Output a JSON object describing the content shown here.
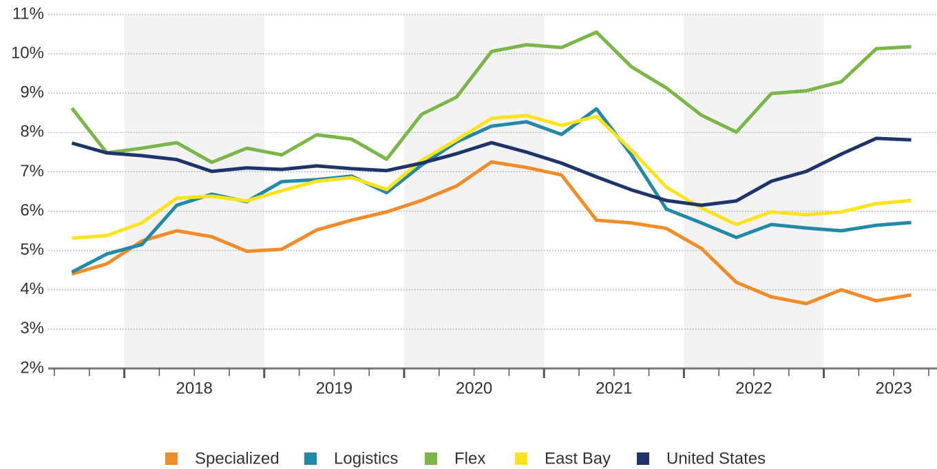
{
  "chart_data": {
    "type": "line",
    "x": [
      2017.625,
      2017.875,
      2018.125,
      2018.375,
      2018.625,
      2018.875,
      2019.125,
      2019.375,
      2019.625,
      2019.875,
      2020.125,
      2020.375,
      2020.625,
      2020.875,
      2021.125,
      2021.375,
      2021.625,
      2021.875,
      2022.125,
      2022.375,
      2022.625,
      2022.875,
      2023.125,
      2023.375,
      2023.625
    ],
    "xlim": [
      2017.5,
      2023.75
    ],
    "xticks": [
      {
        "value": 2018.5,
        "label": "2018"
      },
      {
        "value": 2019.5,
        "label": "2019"
      },
      {
        "value": 2020.5,
        "label": "2020"
      },
      {
        "value": 2021.5,
        "label": "2021"
      },
      {
        "value": 2022.5,
        "label": "2022"
      },
      {
        "value": 2023.5,
        "label": "2023"
      }
    ],
    "ylim": [
      2,
      11
    ],
    "yticks": [
      {
        "value": 2,
        "label": "2%"
      },
      {
        "value": 3,
        "label": "3%"
      },
      {
        "value": 4,
        "label": "4%"
      },
      {
        "value": 5,
        "label": "5%"
      },
      {
        "value": 6,
        "label": "6%"
      },
      {
        "value": 7,
        "label": "7%"
      },
      {
        "value": 8,
        "label": "8%"
      },
      {
        "value": 9,
        "label": "9%"
      },
      {
        "value": 10,
        "label": "10%"
      },
      {
        "value": 11,
        "label": "11%"
      }
    ],
    "grid": true,
    "series": [
      {
        "name": "Specialized",
        "color": "#f28c28",
        "values": [
          4.4,
          4.66,
          5.24,
          5.5,
          5.35,
          4.98,
          5.03,
          5.52,
          5.77,
          5.98,
          6.27,
          6.64,
          7.25,
          7.11,
          6.92,
          5.77,
          5.7,
          5.56,
          5.05,
          4.19,
          3.82,
          3.65,
          4.0,
          3.72,
          3.87
        ]
      },
      {
        "name": "Logistics",
        "color": "#2389a6",
        "values": [
          4.45,
          4.91,
          5.15,
          6.15,
          6.43,
          6.24,
          6.75,
          6.8,
          6.89,
          6.47,
          7.17,
          7.76,
          8.16,
          8.27,
          7.95,
          8.6,
          7.43,
          6.05,
          5.7,
          5.33,
          5.66,
          5.57,
          5.5,
          5.64,
          5.71
        ]
      },
      {
        "name": "Flex",
        "color": "#7ab648",
        "values": [
          8.62,
          7.48,
          7.6,
          7.74,
          7.24,
          7.6,
          7.43,
          7.94,
          7.83,
          7.32,
          8.46,
          8.9,
          10.06,
          10.23,
          10.16,
          10.55,
          9.67,
          9.13,
          8.44,
          8.01,
          8.99,
          9.06,
          9.29,
          10.13,
          10.18
        ]
      },
      {
        "name": "East Bay",
        "color": "#fde31d",
        "values": [
          5.31,
          5.38,
          5.7,
          6.33,
          6.38,
          6.26,
          6.52,
          6.76,
          6.85,
          6.55,
          7.29,
          7.81,
          8.36,
          8.43,
          8.18,
          8.41,
          7.55,
          6.61,
          6.08,
          5.66,
          5.98,
          5.91,
          5.98,
          6.19,
          6.27
        ]
      },
      {
        "name": "United States",
        "color": "#1f3468",
        "values": [
          7.73,
          7.48,
          7.41,
          7.31,
          7.01,
          7.1,
          7.06,
          7.15,
          7.08,
          7.03,
          7.22,
          7.46,
          7.74,
          7.5,
          7.22,
          6.87,
          6.54,
          6.27,
          6.15,
          6.26,
          6.76,
          7.01,
          7.45,
          7.85,
          7.81
        ]
      }
    ]
  }
}
